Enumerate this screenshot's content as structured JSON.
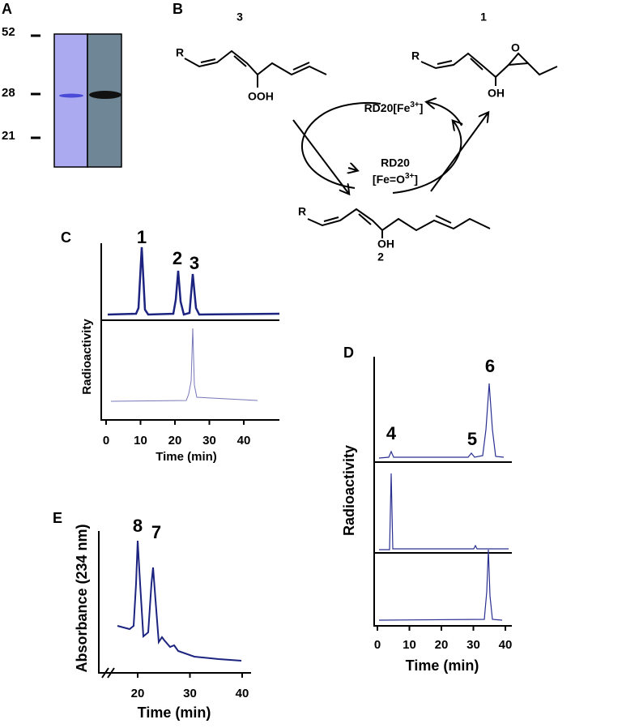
{
  "panels": {
    "A": {
      "label": "A",
      "markers": [
        "52",
        "28",
        "21"
      ]
    },
    "B": {
      "label": "B",
      "compound_numbers": [
        "3",
        "1",
        "2"
      ],
      "r_group": "R",
      "groups": [
        "OOH",
        "OH",
        "OH"
      ],
      "enzyme_top": {
        "text": "RD20[Fe",
        "sup": "3+",
        "after": "]"
      },
      "enzyme_mid": "RD20",
      "enzyme_bottom": {
        "text": "[Fe=O",
        "sup": "3+",
        "after": "]"
      }
    },
    "C": {
      "label": "C",
      "peaks": [
        "1",
        "2",
        "3"
      ],
      "ylabel": "Radioactivity",
      "xlabel": "Time (min)",
      "xticks": [
        0,
        10,
        20,
        30,
        40
      ]
    },
    "D": {
      "label": "D",
      "peaks": [
        "4",
        "5",
        "6"
      ],
      "ylabel": "Radioactivity",
      "xlabel": "Time (min)",
      "xticks": [
        0,
        10,
        20,
        30,
        40
      ]
    },
    "E": {
      "label": "E",
      "peaks": [
        "8",
        "7"
      ],
      "ylabel": "Absorbance (234 nm)",
      "xlabel": "Time (min)",
      "xticks": [
        20,
        30,
        40
      ]
    }
  }
}
